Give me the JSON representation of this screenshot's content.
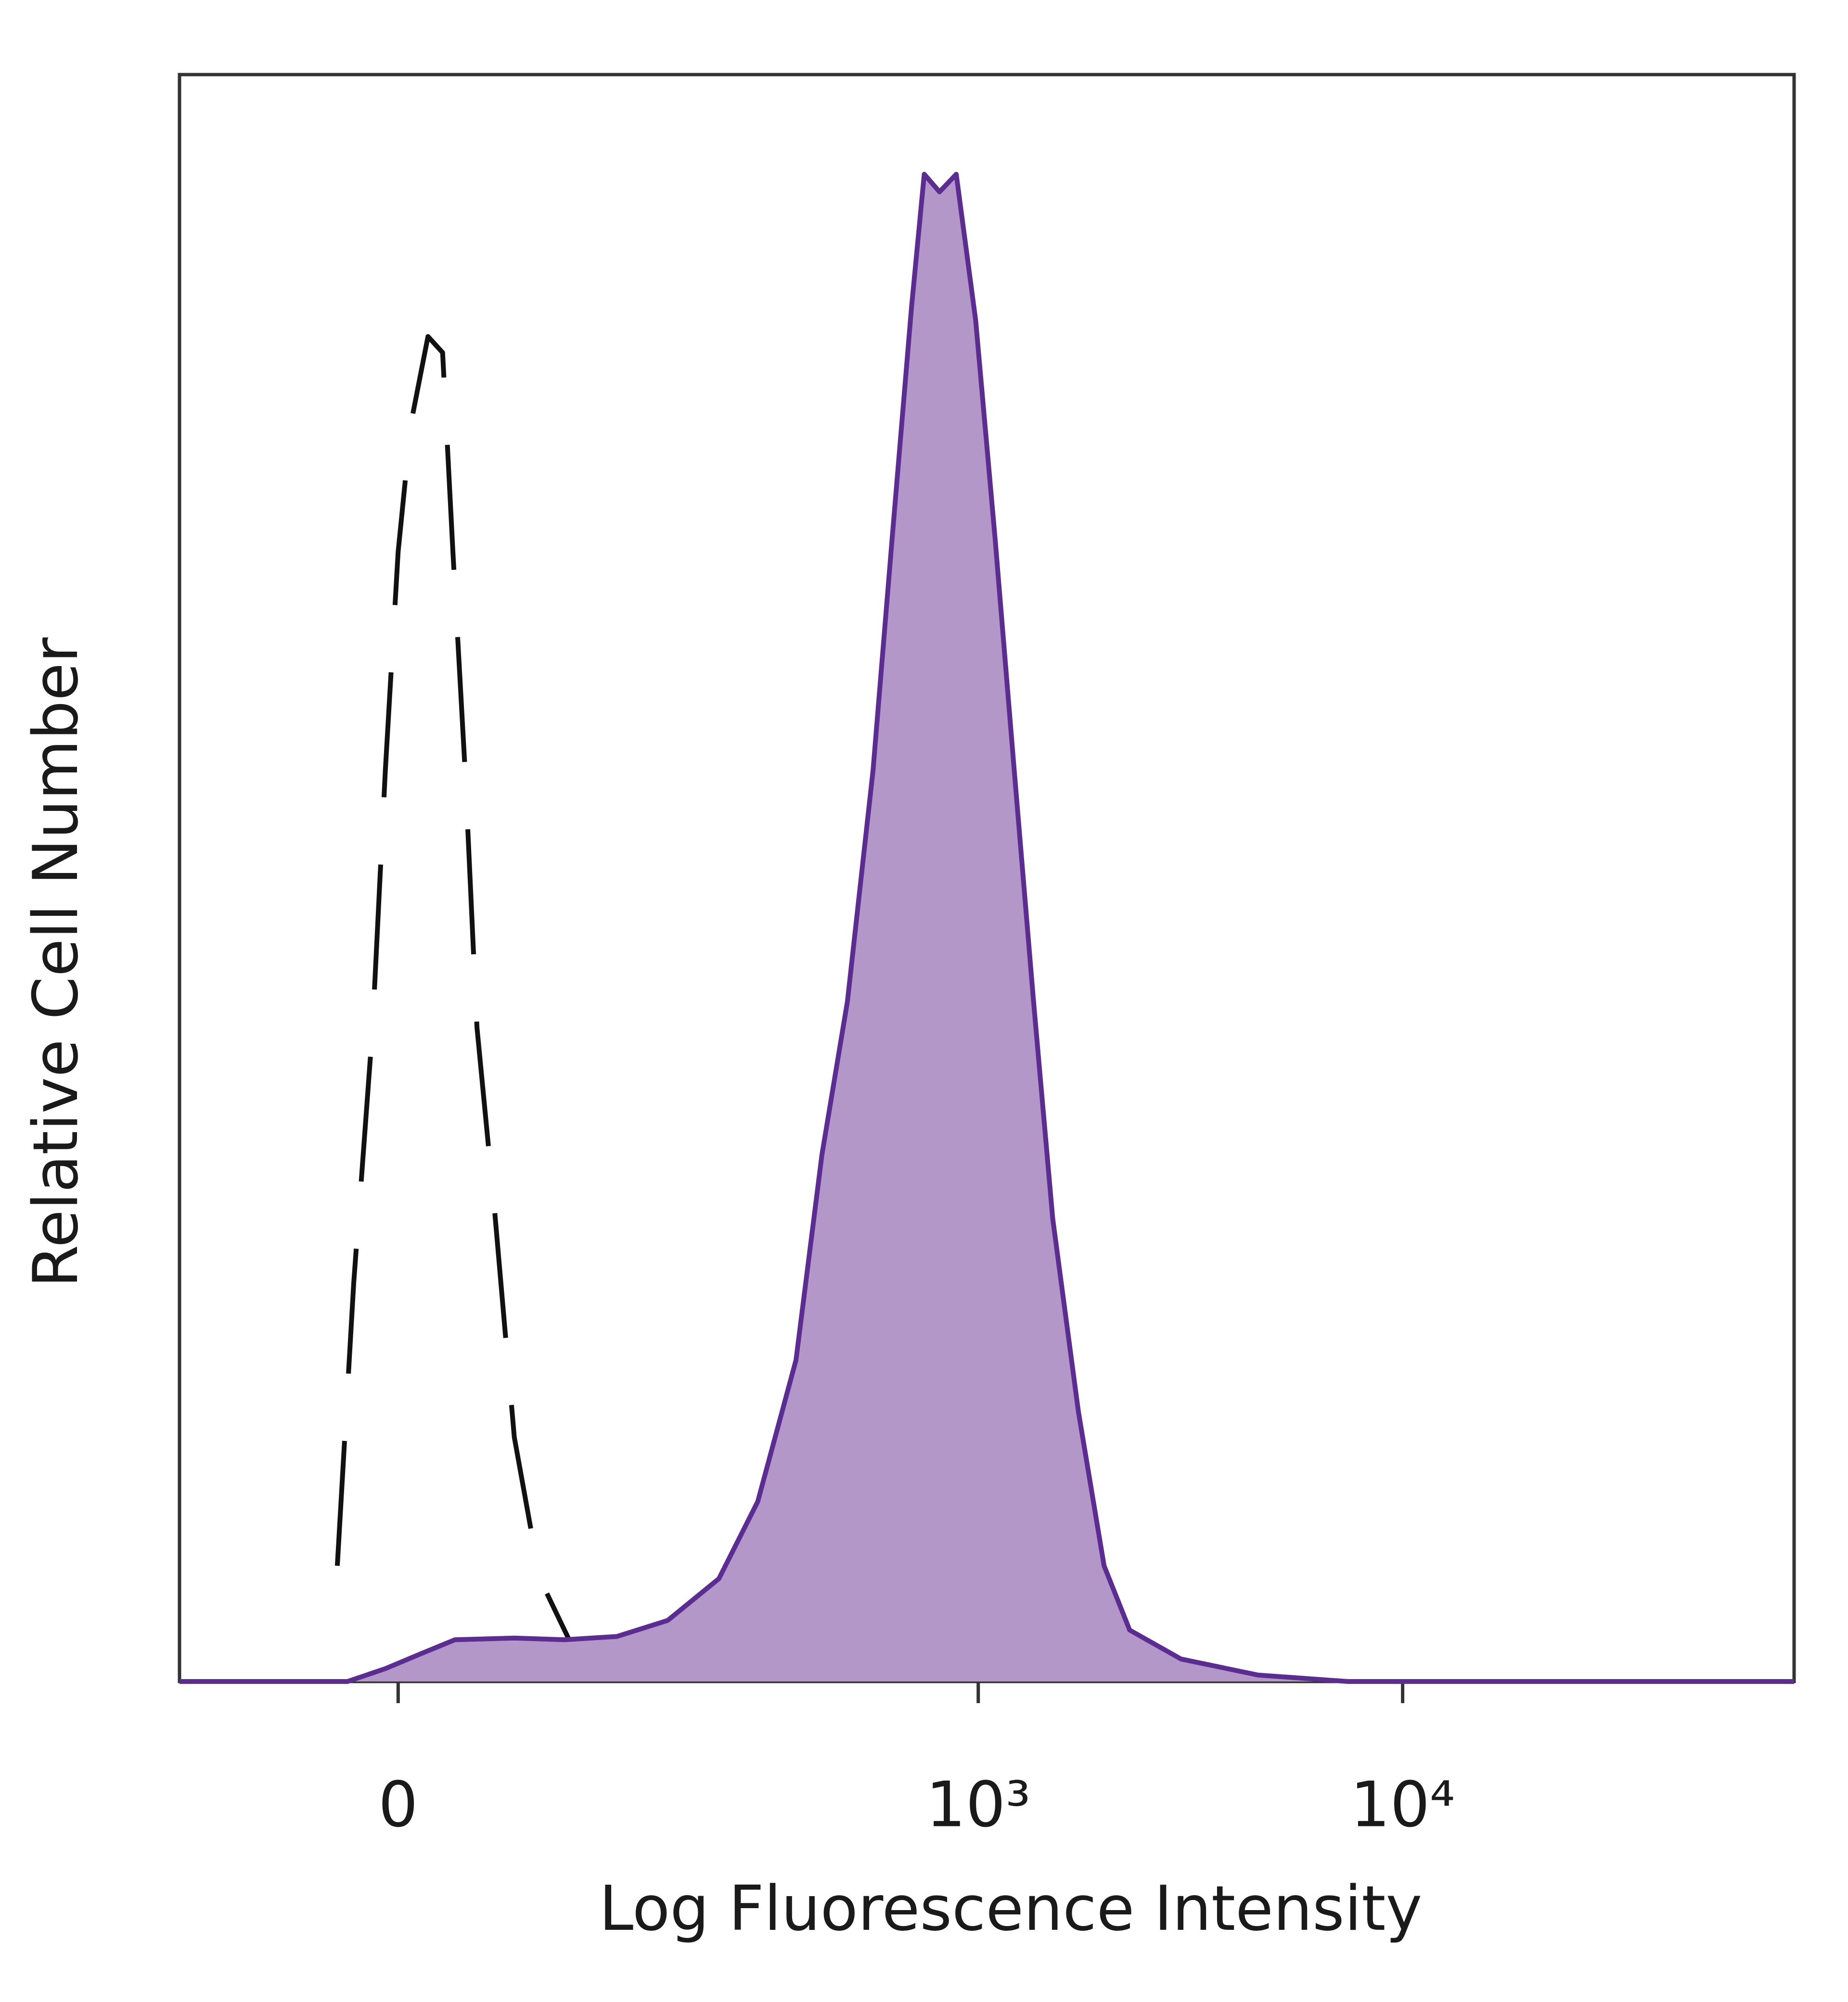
{
  "chart_data": {
    "type": "line",
    "x_label": "Log Fluorescence Intensity",
    "y_label": "Relative Cell Number",
    "xscale": "biexponential",
    "xlim": [
      -128,
      83500
    ],
    "xticks": [
      0,
      {
        "value": 1000,
        "label": "10³"
      },
      {
        "value": 10000,
        "label": "10⁴"
      }
    ],
    "ylim": [
      0,
      100
    ],
    "grid": false,
    "series": [
      {
        "color": "#5b2d91",
        "fill": "#b497c9",
        "line_style": "solid",
        "x": [
          -128,
          -24,
          -6,
          12,
          27,
          58,
          89,
          128,
          176,
          238,
          297,
          368,
          425,
          489,
          563,
          625,
          695,
          745,
          810,
          887,
          986,
          1096,
          1216,
          1351,
          1499,
          1723,
          1981,
          2276,
          3007,
          4565,
          7430,
          83500
        ],
        "values": [
          0,
          0,
          0.8,
          1.8,
          2.6,
          2.7,
          2.6,
          2.8,
          3.8,
          6.4,
          11.2,
          20,
          32.8,
          42.3,
          56.7,
          71.1,
          85.5,
          93.8,
          92.7,
          93.8,
          84.7,
          71.1,
          56.7,
          42.3,
          28.8,
          16.8,
          7.2,
          3.2,
          1.4,
          0.4,
          0,
          0
        ]
      },
      {
        "color": "#111111",
        "line_style": "dashed",
        "x": [
          -29,
          -21,
          -12,
          -6,
          0,
          6,
          14,
          21,
          26,
          32,
          38,
          47,
          58,
          73,
          93,
          117
        ],
        "values": [
          7.2,
          24.8,
          40.7,
          56.7,
          70.3,
          78.3,
          83.7,
          82.7,
          70.3,
          56.7,
          40.7,
          29.6,
          15.2,
          6.4,
          2.4,
          0.4
        ]
      }
    ]
  }
}
